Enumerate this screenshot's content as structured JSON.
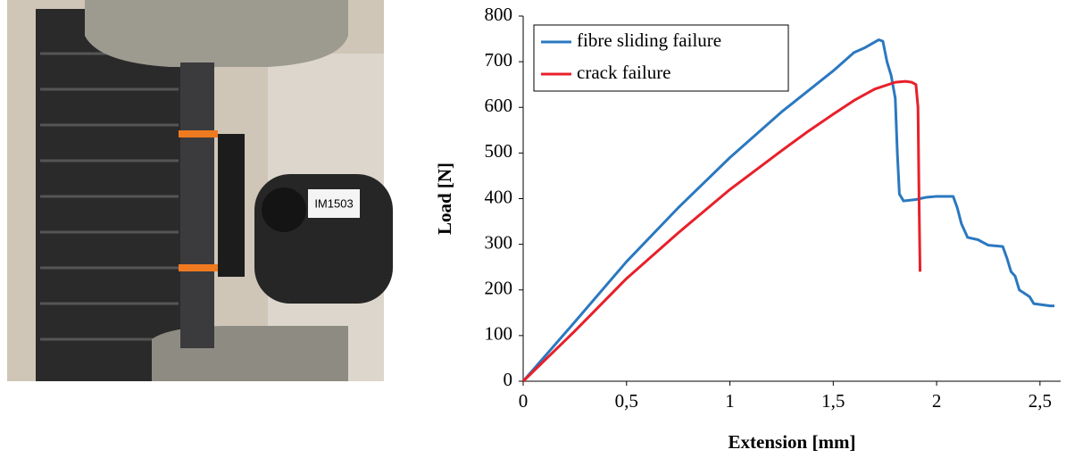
{
  "photo": {
    "label": "IM1503"
  },
  "chart_data": {
    "type": "line",
    "x_label": "Extension [mm]",
    "y_label": "Load [N]",
    "xlim": [
      0,
      2.6
    ],
    "ylim": [
      0,
      800
    ],
    "xticks": [
      0,
      {
        "value": 0.5,
        "label": "0,5"
      },
      1,
      {
        "value": 1.5,
        "label": "1,5"
      },
      2,
      {
        "value": 2.5,
        "label": "2,5"
      }
    ],
    "yticks": [
      0,
      100,
      200,
      300,
      400,
      500,
      600,
      700,
      800
    ],
    "grid": false,
    "legend": "upper left",
    "series": [
      {
        "name": "fibre sliding failure",
        "color": "#2a78c0",
        "x": [
          0,
          0.25,
          0.5,
          0.75,
          1,
          1.25,
          1.5,
          1.6,
          1.65,
          1.72,
          1.74,
          1.76,
          1.78,
          1.8,
          1.81,
          1.82,
          1.84,
          1.9,
          1.95,
          2.0,
          2.08,
          2.1,
          2.12,
          2.15,
          2.2,
          2.25,
          2.32,
          2.34,
          2.36,
          2.38,
          2.4,
          2.45,
          2.47,
          2.55,
          2.57
        ],
        "values": [
          0,
          130,
          262,
          380,
          490,
          590,
          680,
          720,
          730,
          748,
          745,
          700,
          670,
          620,
          500,
          410,
          395,
          398,
          403,
          405,
          405,
          380,
          345,
          315,
          310,
          298,
          295,
          270,
          240,
          230,
          200,
          185,
          170,
          165,
          165
        ]
      },
      {
        "name": "crack failure",
        "color": "#e8202a",
        "x": [
          0,
          0.25,
          0.5,
          0.75,
          1,
          1.25,
          1.38,
          1.5,
          1.6,
          1.7,
          1.8,
          1.85,
          1.88,
          1.9,
          1.91,
          1.915,
          1.92
        ],
        "values": [
          0,
          110,
          225,
          325,
          420,
          505,
          548,
          585,
          615,
          640,
          655,
          657,
          655,
          650,
          600,
          400,
          240
        ]
      }
    ]
  }
}
